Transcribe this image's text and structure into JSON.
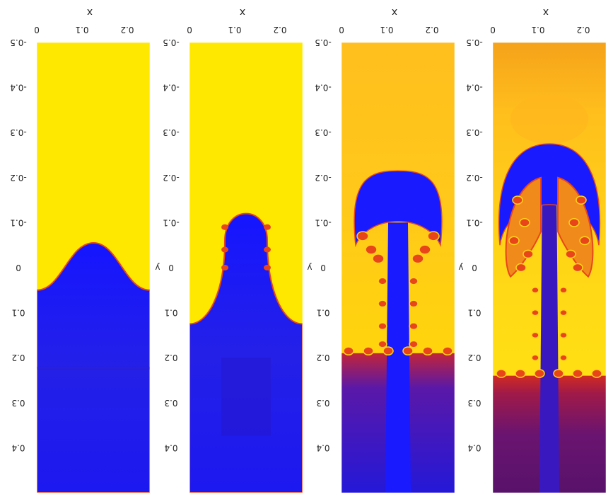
{
  "figure": {
    "panel_count": 4,
    "colors": {
      "light_fluid": "#ffe800",
      "light_fluid_warm": "#ffc61a",
      "heavy_fluid": "#1a1aff",
      "heavy_fluid_deep": "#2a10c8",
      "interface": "#e8461a",
      "mixing_dark": "#7a1a5a"
    }
  },
  "chart_data": [
    {
      "type": "heatmap",
      "xlabel": "x",
      "ylabel": "",
      "xlim": [
        0,
        0.25
      ],
      "ylim": [
        -0.5,
        0.5
      ],
      "x_ticks": [
        "0",
        "0.1",
        "0.2"
      ],
      "y_ticks": [
        "-0.5",
        "-0.4",
        "-0.3",
        "-0.2",
        "-0.1",
        "0",
        "0.1",
        "0.2",
        "0.3",
        "0.4"
      ],
      "stage": 1
    },
    {
      "type": "heatmap",
      "xlabel": "x",
      "ylabel": "y",
      "xlim": [
        0,
        0.25
      ],
      "ylim": [
        -0.5,
        0.5
      ],
      "x_ticks": [
        "0",
        "0.1",
        "0.2"
      ],
      "y_ticks": [
        "-0.5",
        "-0.4",
        "-0.3",
        "-0.2",
        "-0.1",
        "0",
        "0.1",
        "0.2",
        "0.3",
        "0.4"
      ],
      "stage": 2
    },
    {
      "type": "heatmap",
      "xlabel": "x",
      "ylabel": "y",
      "xlim": [
        0,
        0.25
      ],
      "ylim": [
        -0.5,
        0.5
      ],
      "x_ticks": [
        "0",
        "0.1",
        "0.2"
      ],
      "y_ticks": [
        "-0.5",
        "-0.4",
        "-0.3",
        "-0.2",
        "-0.1",
        "0",
        "0.1",
        "0.2",
        "0.3",
        "0.4"
      ],
      "stage": 3
    },
    {
      "type": "heatmap",
      "xlabel": "x",
      "ylabel": "y",
      "xlim": [
        0,
        0.25
      ],
      "ylim": [
        -0.5,
        0.5
      ],
      "x_ticks": [
        "0",
        "0.1",
        "0.2"
      ],
      "y_ticks": [
        "-0.5",
        "-0.4",
        "-0.3",
        "-0.2",
        "-0.1",
        "0",
        "0.1",
        "0.2",
        "0.3",
        "0.4"
      ],
      "stage": 4
    }
  ]
}
